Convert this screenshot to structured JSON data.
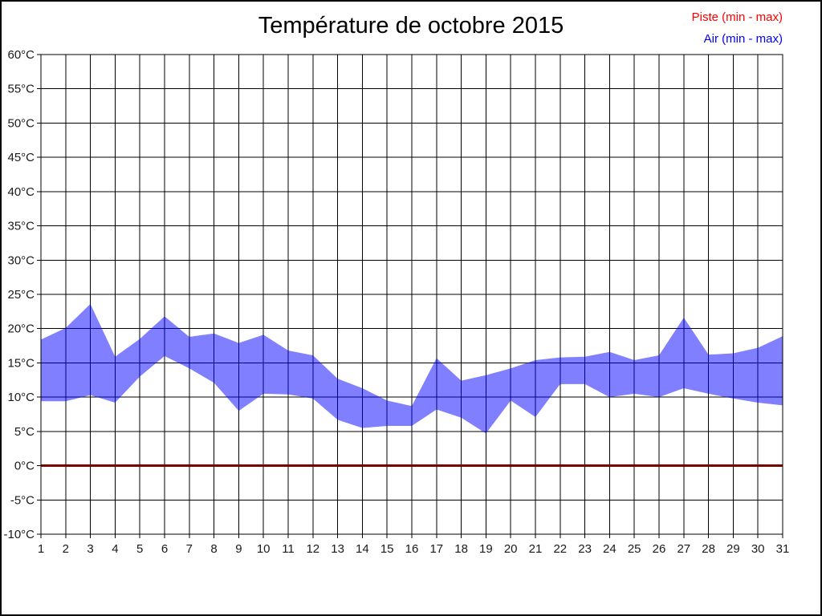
{
  "header": {
    "title": "Température de octobre 2015"
  },
  "legend": [
    {
      "label": "Piste (min - max)",
      "color": "#ff0000"
    },
    {
      "label": "Air (min - max)",
      "color": "#0000ff"
    }
  ],
  "chart_data": {
    "type": "area",
    "title": "Température de octobre 2015",
    "xlabel": "",
    "ylabel": "°C",
    "x": [
      1,
      2,
      3,
      4,
      5,
      6,
      7,
      8,
      9,
      10,
      11,
      12,
      13,
      14,
      15,
      16,
      17,
      18,
      19,
      20,
      21,
      22,
      23,
      24,
      25,
      26,
      27,
      28,
      29,
      30,
      31
    ],
    "ylim": [
      -10,
      60
    ],
    "ytick_step": 5,
    "ytick_suffix": "°C",
    "grid": true,
    "grid_color": "#000000",
    "legend_position": "top-right",
    "series": [
      {
        "name": "Piste (min - max)",
        "style": "flat-line",
        "legend_color": "#ff0000",
        "draw_color": "#7a0000",
        "min": [
          0,
          0,
          0,
          0,
          0,
          0,
          0,
          0,
          0,
          0,
          0,
          0,
          0,
          0,
          0,
          0,
          0,
          0,
          0,
          0,
          0,
          0,
          0,
          0,
          0,
          0,
          0,
          0,
          0,
          0,
          0
        ],
        "max": [
          0,
          0,
          0,
          0,
          0,
          0,
          0,
          0,
          0,
          0,
          0,
          0,
          0,
          0,
          0,
          0,
          0,
          0,
          0,
          0,
          0,
          0,
          0,
          0,
          0,
          0,
          0,
          0,
          0,
          0,
          0
        ]
      },
      {
        "name": "Air (min - max)",
        "style": "band",
        "legend_color": "#0000ff",
        "fill_color": "rgba(0,0,255,0.5)",
        "min": [
          9.4,
          9.4,
          10.3,
          9.2,
          13.0,
          16.0,
          14.2,
          12.1,
          8.0,
          10.5,
          10.4,
          9.8,
          6.7,
          5.5,
          5.8,
          5.8,
          8.2,
          7.0,
          4.7,
          9.5,
          7.1,
          11.9,
          11.9,
          10.0,
          10.5,
          10.0,
          11.3,
          10.5,
          9.8,
          9.2,
          8.8
        ],
        "max": [
          18.4,
          20.1,
          23.6,
          15.9,
          18.5,
          21.8,
          18.8,
          19.3,
          17.9,
          19.1,
          16.8,
          16.1,
          12.7,
          11.3,
          9.5,
          8.7,
          15.7,
          12.4,
          13.2,
          14.2,
          15.4,
          15.8,
          15.9,
          16.6,
          15.4,
          16.1,
          21.6,
          16.2,
          16.4,
          17.2,
          18.9
        ]
      }
    ]
  }
}
